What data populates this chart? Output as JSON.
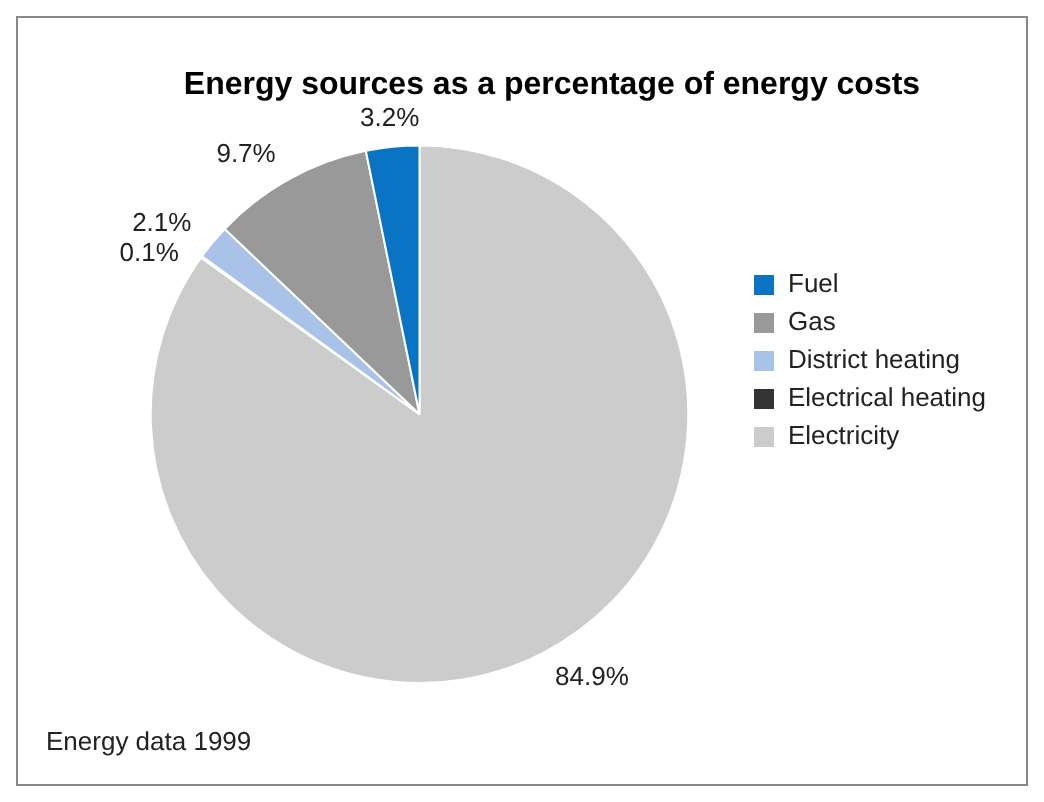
{
  "chart_data": {
    "type": "pie",
    "title": "Energy sources as a percentage of energy costs",
    "categories": [
      "Fuel",
      "Gas",
      "District heating",
      "Electrical heating",
      "Electricity"
    ],
    "values": [
      3.2,
      9.7,
      2.1,
      0.1,
      84.9
    ],
    "value_labels": [
      "3.2%",
      "9.7%",
      "2.1%",
      "0.1%",
      "84.9%"
    ],
    "colors": [
      "#0a74c4",
      "#999999",
      "#a9c3e8",
      "#333333",
      "#cccccc"
    ],
    "legend": "right",
    "annotations": [
      "Energy data 1999"
    ]
  }
}
